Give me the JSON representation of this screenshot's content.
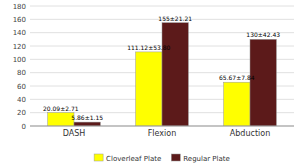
{
  "chart_data": {
    "type": "bar",
    "categories": [
      "DASH",
      "Flexion",
      "Abduction"
    ],
    "series": [
      {
        "name": "Cloverleaf Plate",
        "color": "#FFFF00",
        "values": [
          20.09,
          111.12,
          65.67
        ],
        "value_labels": [
          "20.09±2.71",
          "111.12±53.80",
          "65.67±7.84"
        ]
      },
      {
        "name": "Regular Plate",
        "color": "#5C1A1A",
        "values": [
          5.86,
          155.0,
          130.0
        ],
        "value_labels": [
          "5.86±1.15",
          "155±21.21",
          "130±42.43"
        ]
      }
    ],
    "ylim": [
      0,
      180
    ],
    "yticks": [
      0,
      20,
      40,
      60,
      80,
      100,
      120,
      140,
      160,
      180
    ],
    "grid": true,
    "data_labels": true,
    "legend": "bottom"
  }
}
